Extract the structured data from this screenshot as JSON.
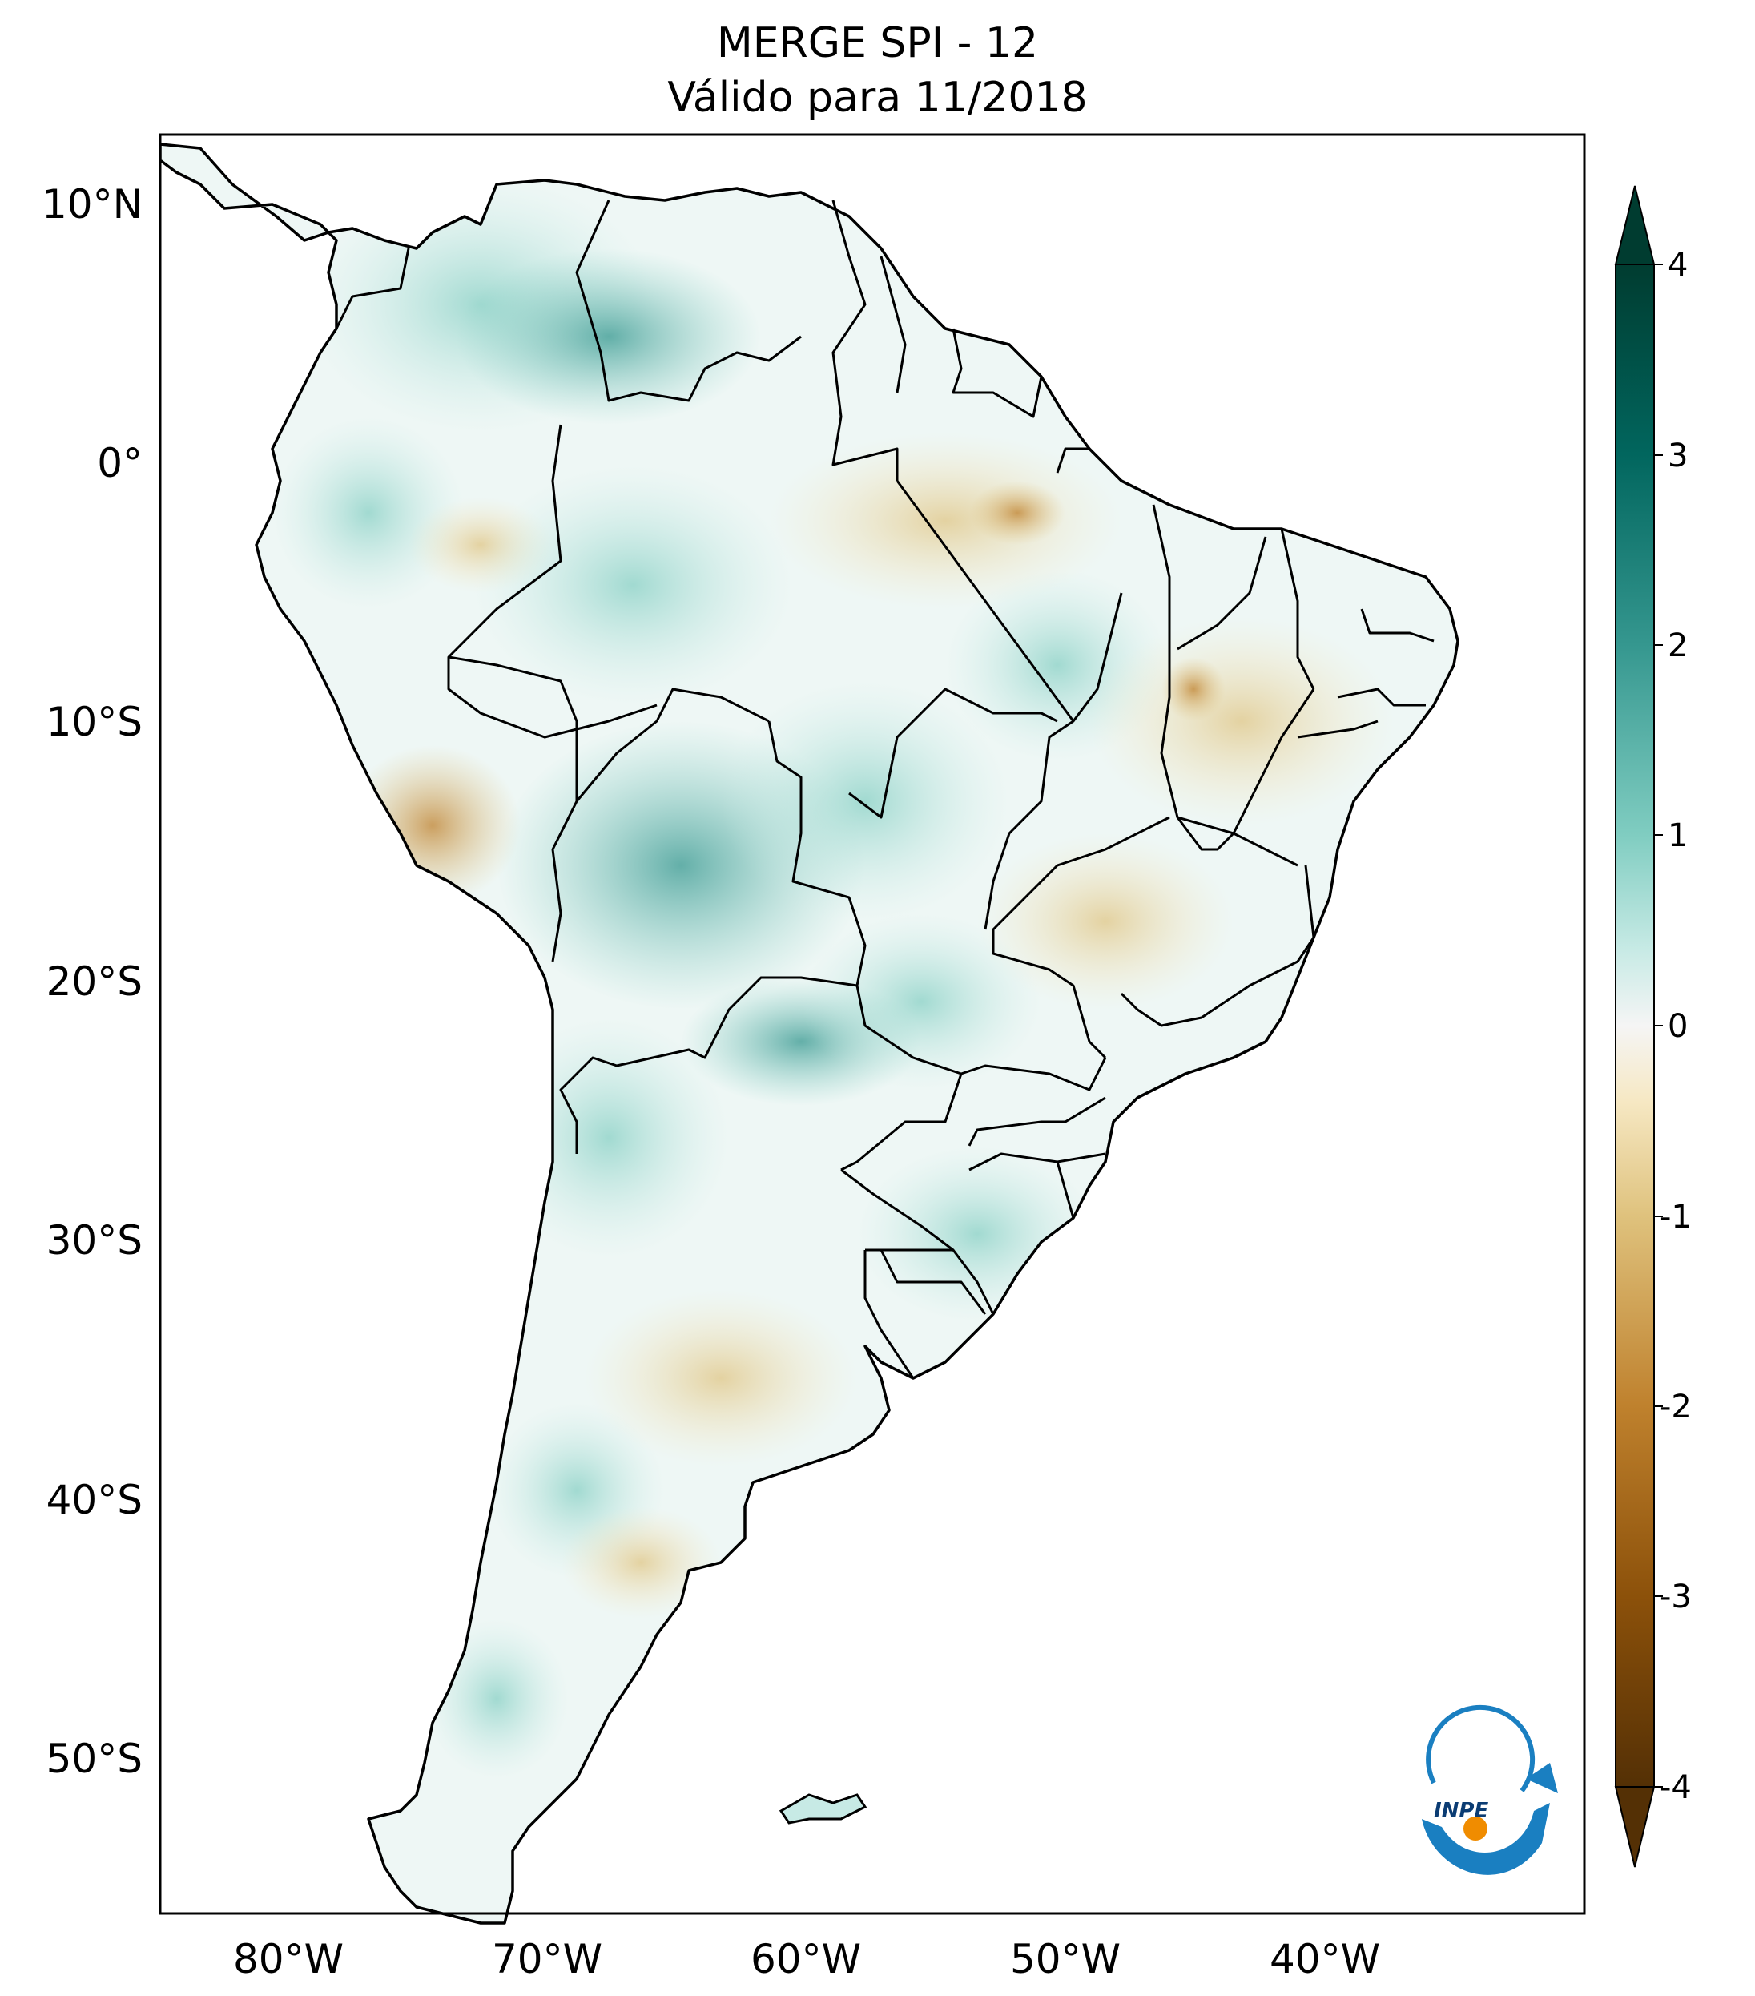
{
  "title": {
    "line1": "MERGE   SPI - 12",
    "line2": "Válido para 11/2018"
  },
  "map": {
    "lat_ticks": [
      "10°N",
      "0°",
      "10°S",
      "20°S",
      "30°S",
      "40°S",
      "50°S"
    ],
    "lon_ticks": [
      "80°W",
      "70°W",
      "60°W",
      "50°W",
      "40°W"
    ],
    "extent_lon": [
      -85,
      -30
    ],
    "extent_lat": [
      -56,
      13
    ]
  },
  "colorbar": {
    "ticks": [
      "4",
      "3",
      "2",
      "1",
      "0",
      "-1",
      "-2",
      "-3",
      "-4"
    ],
    "range": [
      -4,
      4
    ],
    "extend": "both",
    "colormap": "BrBG",
    "colors": {
      "max": "#003c30",
      "high": "#35978f",
      "mid_high": "#80cdc1",
      "low_high": "#c7eae5",
      "zero": "#f5f5f5",
      "low_low": "#f6e8c3",
      "mid_low": "#dfc27d",
      "low": "#bf812d",
      "min": "#543005"
    }
  },
  "logo": {
    "text": "INPE"
  }
}
